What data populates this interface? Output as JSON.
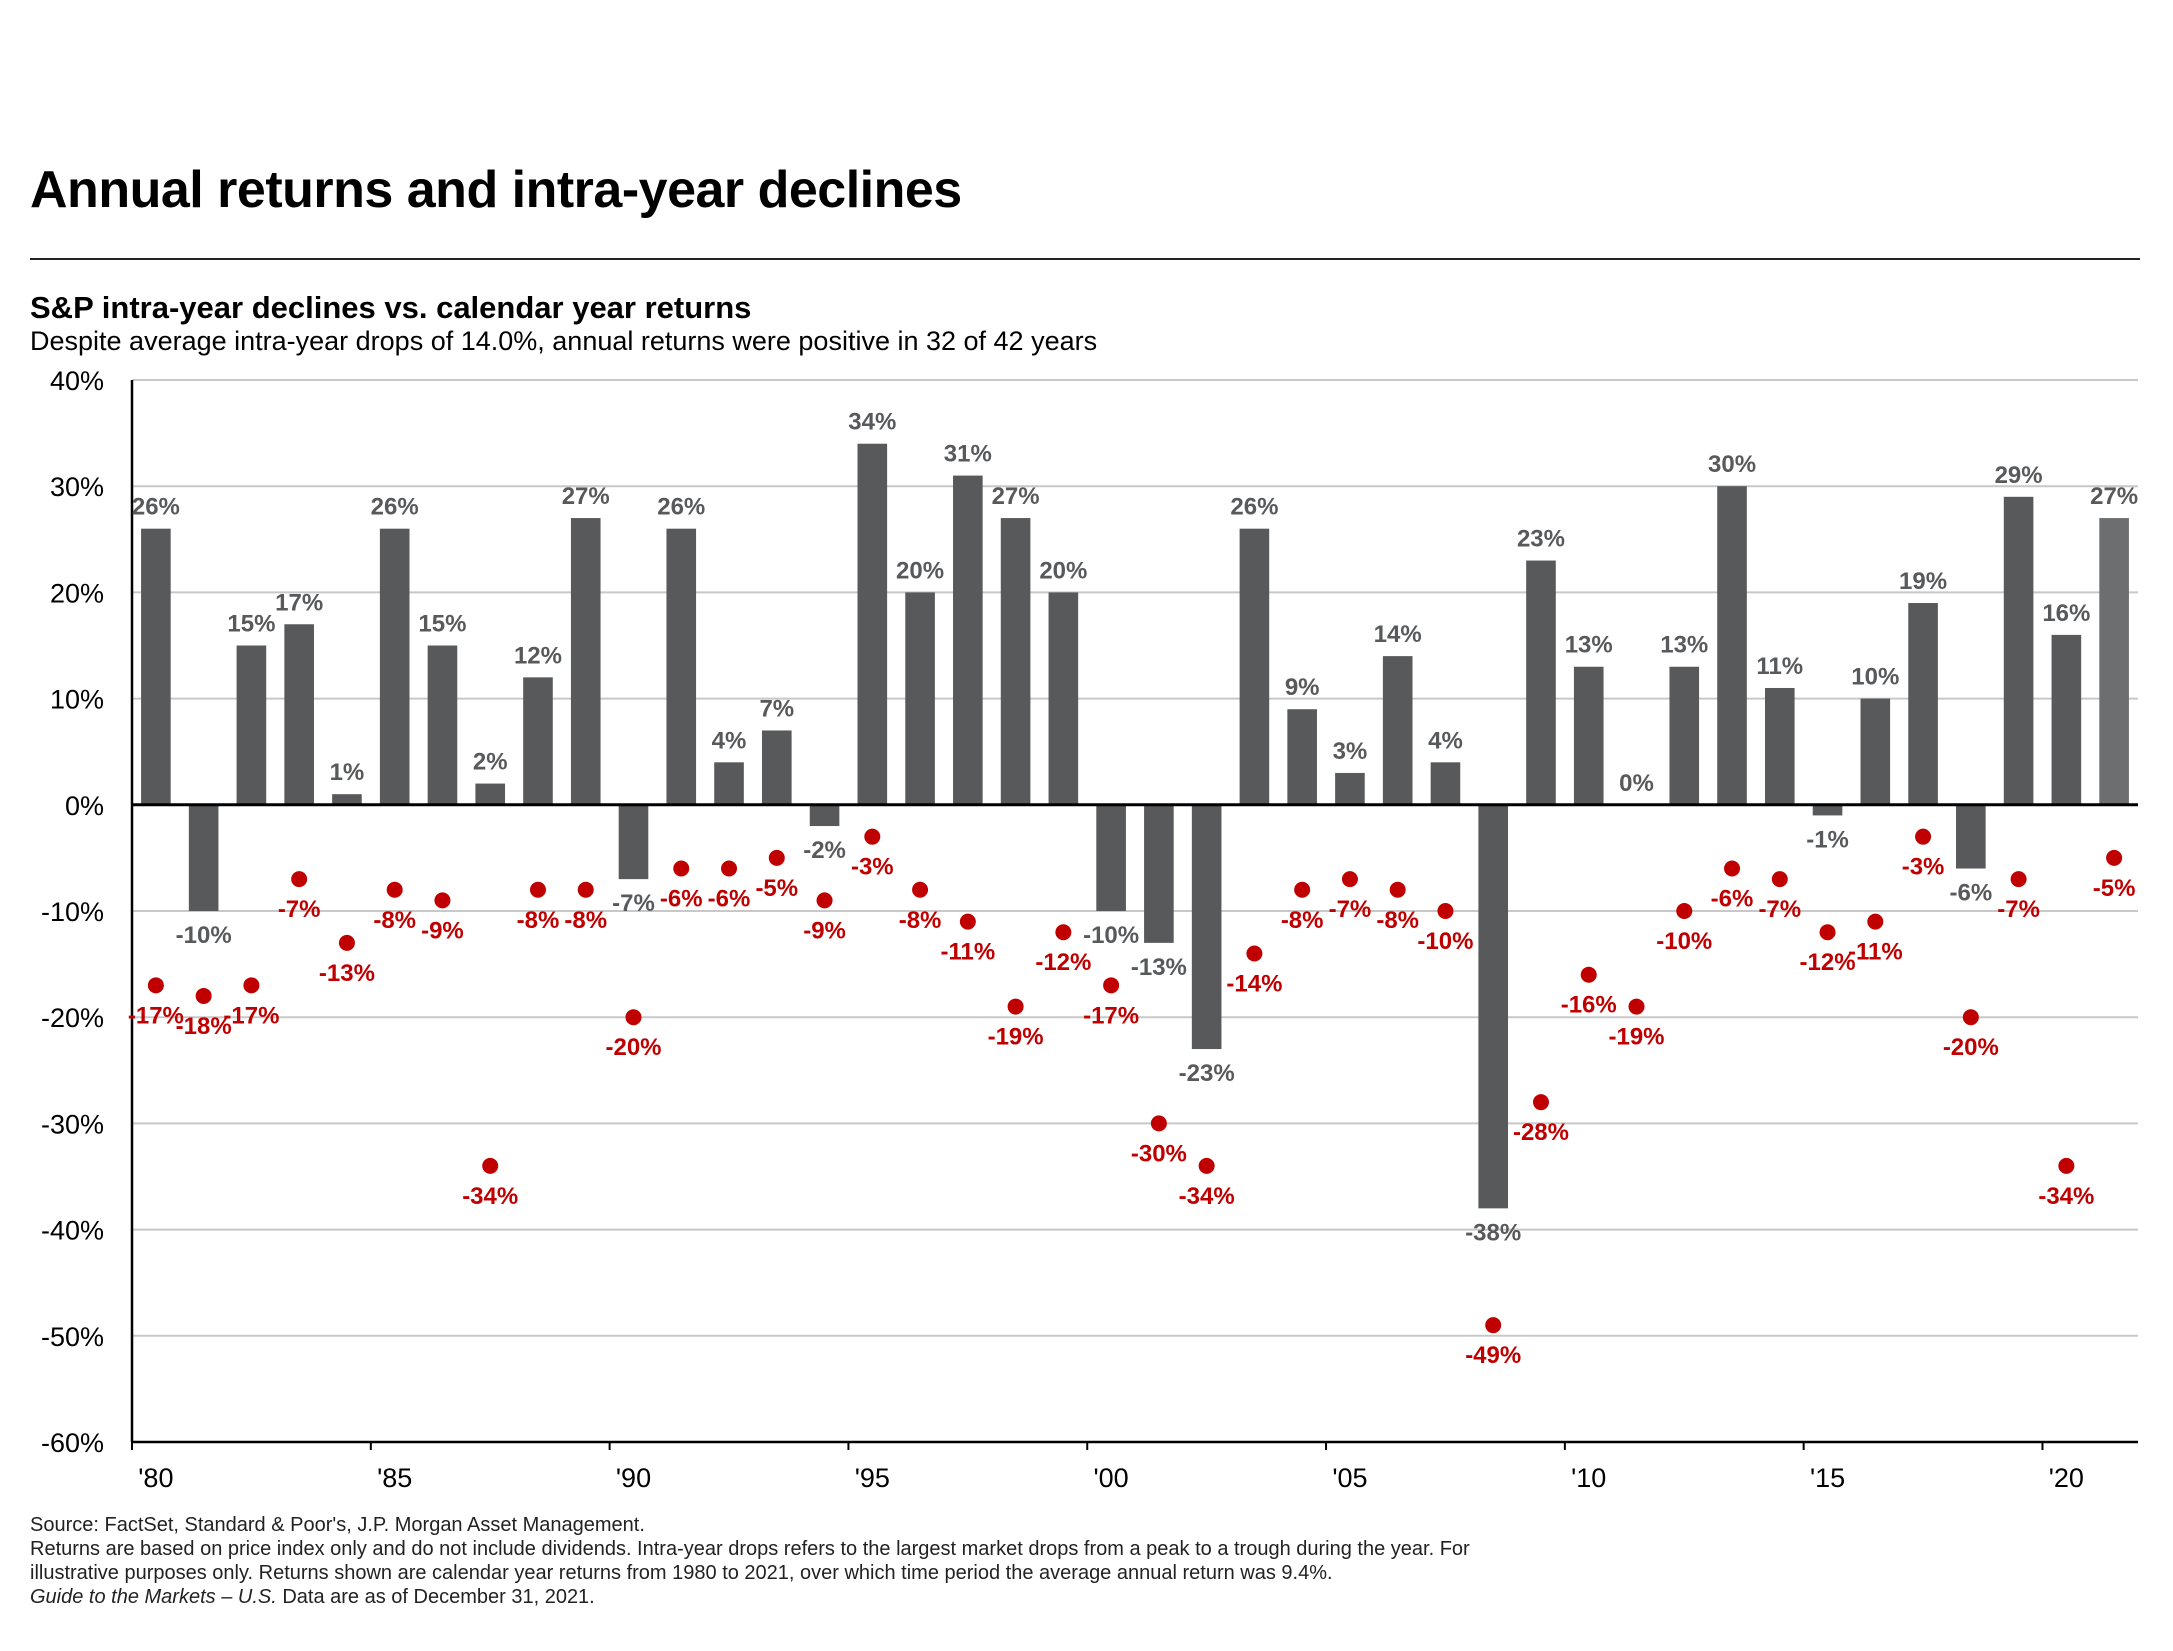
{
  "title": "Annual returns and intra-year declines",
  "subtitle": "S&P intra-year declines vs. calendar year returns",
  "description": "Despite average intra-year drops of 14.0%, annual returns were positive in 32 of 42 years",
  "footnote": {
    "line1": "Source: FactSet, Standard & Poor's, J.P. Morgan Asset Management.",
    "line2": "Returns are based on price index only and do not include dividends. Intra-year drops refers to the largest market drops from a peak to a trough during the year. For",
    "line3": "illustrative purposes only. Returns shown are calendar year returns from 1980 to 2021, over which time period the average annual return was 9.4%.",
    "line4_italic": "Guide to the Markets – U.S.",
    "line4_rest": " Data are as of December 31, 2021."
  },
  "colors": {
    "bar": "#58595b",
    "bar_last": "#6d6e70",
    "dot": "#c00000",
    "dot_label": "#c00000",
    "bar_label": "#58595b",
    "grid": "#c8c8c8"
  },
  "chart_data": {
    "type": "bar",
    "title": "S&P intra-year declines vs. calendar year returns",
    "ylim": [
      -60,
      40
    ],
    "yticks": [
      40,
      30,
      20,
      10,
      0,
      -10,
      -20,
      -30,
      -40,
      -50,
      -60
    ],
    "ytick_labels": [
      "40%",
      "30%",
      "20%",
      "10%",
      "0%",
      "-10%",
      "-20%",
      "-30%",
      "-40%",
      "-50%",
      "-60%"
    ],
    "years": [
      1980,
      1981,
      1982,
      1983,
      1984,
      1985,
      1986,
      1987,
      1988,
      1989,
      1990,
      1991,
      1992,
      1993,
      1994,
      1995,
      1996,
      1997,
      1998,
      1999,
      2000,
      2001,
      2002,
      2003,
      2004,
      2005,
      2006,
      2007,
      2008,
      2009,
      2010,
      2011,
      2012,
      2013,
      2014,
      2015,
      2016,
      2017,
      2018,
      2019,
      2020,
      2021
    ],
    "xtick_labels": [
      {
        "year": 1980,
        "label": "'80"
      },
      {
        "year": 1985,
        "label": "'85"
      },
      {
        "year": 1990,
        "label": "'90"
      },
      {
        "year": 1995,
        "label": "'95"
      },
      {
        "year": 2000,
        "label": "'00"
      },
      {
        "year": 2005,
        "label": "'05"
      },
      {
        "year": 2010,
        "label": "'10"
      },
      {
        "year": 2015,
        "label": "'15"
      },
      {
        "year": 2020,
        "label": "'20"
      }
    ],
    "series": [
      {
        "name": "Calendar year returns",
        "type": "bar",
        "values": [
          26,
          -10,
          15,
          17,
          1,
          26,
          15,
          2,
          12,
          27,
          -7,
          26,
          4,
          7,
          -2,
          34,
          20,
          31,
          27,
          20,
          -10,
          -13,
          -23,
          26,
          9,
          3,
          14,
          4,
          -38,
          23,
          13,
          0,
          13,
          30,
          11,
          -1,
          10,
          19,
          -6,
          29,
          16,
          27
        ]
      },
      {
        "name": "Intra-year declines",
        "type": "scatter",
        "values": [
          -17,
          -18,
          -17,
          -7,
          -13,
          -8,
          -9,
          -34,
          -8,
          -8,
          -20,
          -6,
          -6,
          -5,
          -9,
          -3,
          -8,
          -11,
          -19,
          -12,
          -17,
          -30,
          -34,
          -14,
          -8,
          -7,
          -8,
          -10,
          -49,
          -28,
          -16,
          -19,
          -10,
          -6,
          -7,
          -12,
          -11,
          -3,
          -20,
          -7,
          -34,
          -5
        ]
      }
    ]
  }
}
